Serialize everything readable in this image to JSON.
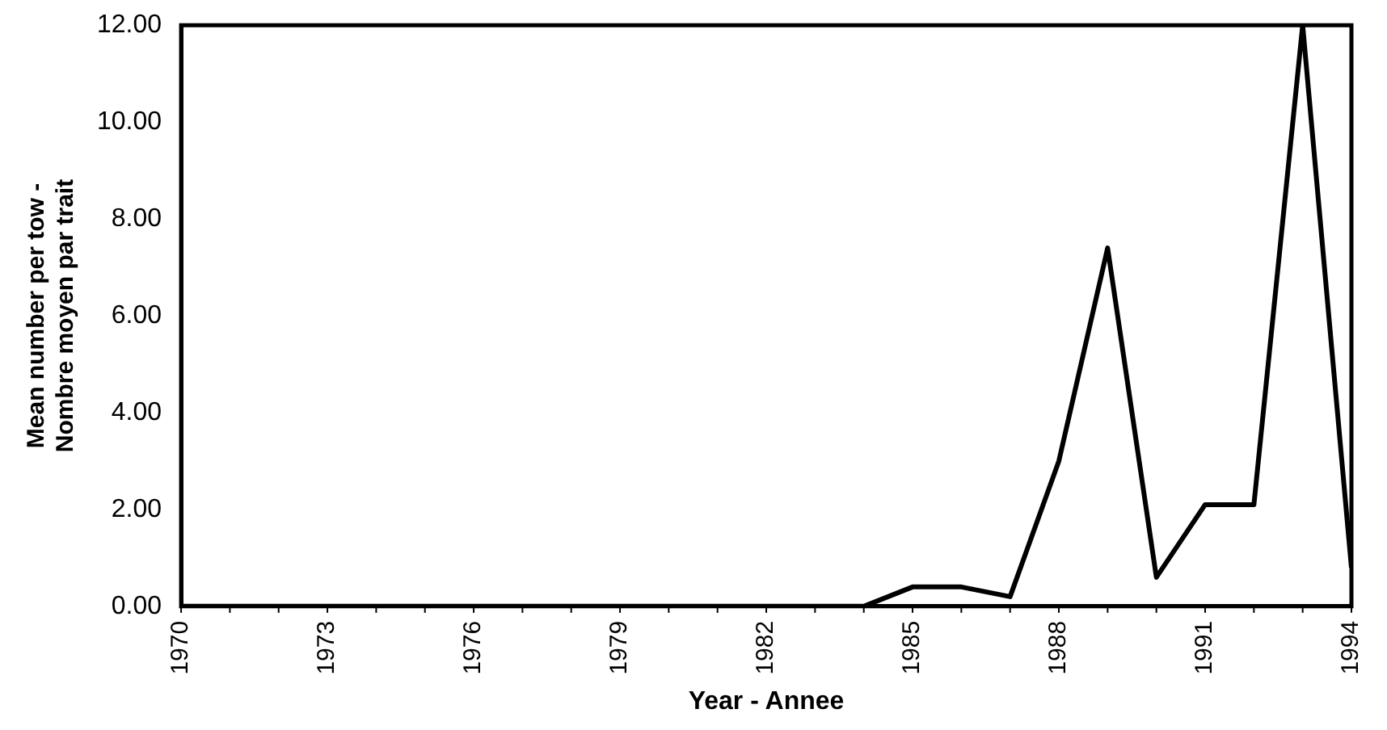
{
  "chart_data": {
    "type": "line",
    "xlabel": "Year - Annee",
    "ylabel": "Mean number per tow -\nNombre moyen par trait",
    "x": [
      1970,
      1971,
      1972,
      1973,
      1974,
      1975,
      1976,
      1977,
      1978,
      1979,
      1980,
      1981,
      1982,
      1983,
      1984,
      1985,
      1986,
      1987,
      1988,
      1989,
      1990,
      1991,
      1992,
      1993,
      1994
    ],
    "series": [
      {
        "color": "#000000",
        "values": [
          0,
          0,
          0,
          0,
          0,
          0,
          0,
          0,
          0,
          0,
          0,
          0,
          0,
          0,
          0,
          0.4,
          0.4,
          0.2,
          3.0,
          7.4,
          0.6,
          2.1,
          2.1,
          12.0,
          0.8
        ]
      }
    ],
    "xlim": [
      1970,
      1994
    ],
    "xticks": [
      1970,
      1973,
      1976,
      1979,
      1982,
      1985,
      1988,
      1991,
      1994
    ],
    "ylim": [
      0,
      12
    ],
    "yticks": [
      {
        "value": 0,
        "label": "0.00"
      },
      {
        "value": 2,
        "label": "2.00"
      },
      {
        "value": 4,
        "label": "4.00"
      },
      {
        "value": 6,
        "label": "6.00"
      },
      {
        "value": 8,
        "label": "8.00"
      },
      {
        "value": 10,
        "label": "10.00"
      },
      {
        "value": 12,
        "label": "12.00"
      }
    ],
    "grid": false,
    "legend": false,
    "marker": "none",
    "line_style": "solid"
  }
}
